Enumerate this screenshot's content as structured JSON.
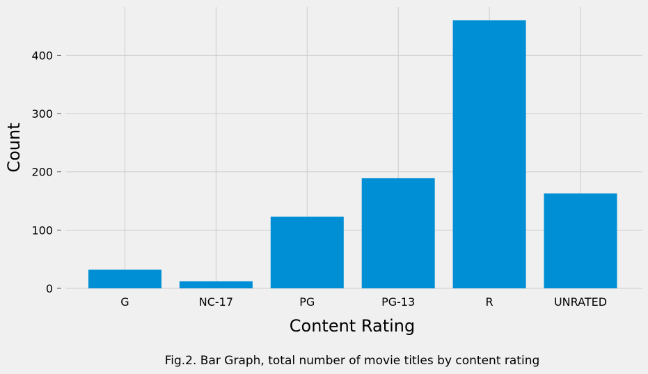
{
  "chart_data": {
    "type": "bar",
    "categories": [
      "G",
      "NC-17",
      "PG",
      "PG-13",
      "R",
      "UNRATED"
    ],
    "values": [
      32,
      12,
      123,
      189,
      460,
      163
    ],
    "xlabel": "Content Rating",
    "ylabel": "Count",
    "ylim": [
      0,
      483
    ],
    "yticks": [
      0,
      100,
      200,
      300,
      400
    ],
    "grid": true,
    "bar_color": "#008fd5",
    "background_color": "#f0f0f0",
    "grid_color": "#cbcbcb"
  },
  "caption": "Fig.2. Bar Graph, total number of movie titles by content rating"
}
